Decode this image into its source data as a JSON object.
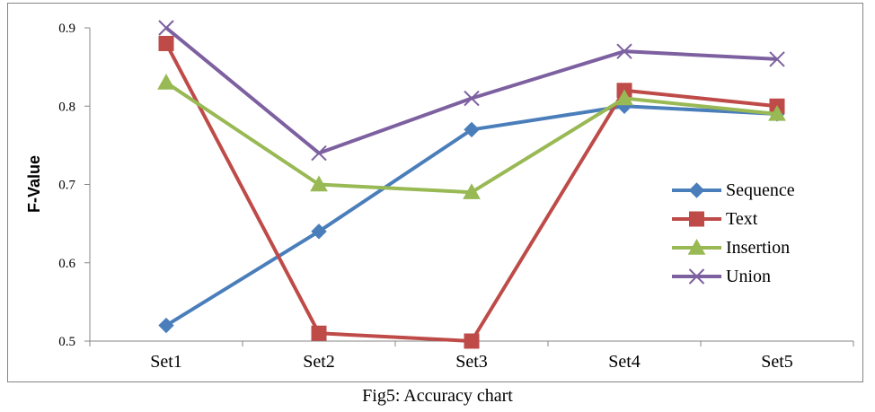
{
  "caption": "Fig5: Accuracy chart",
  "chart_data": {
    "type": "line",
    "title": "",
    "xlabel": "",
    "ylabel": "F-Value",
    "categories": [
      "Set1",
      "Set2",
      "Set3",
      "Set4",
      "Set5"
    ],
    "ylim": [
      0.5,
      0.9
    ],
    "yticks": [
      "0.5",
      "0.6",
      "0.7",
      "0.8",
      "0.9"
    ],
    "grid": false,
    "legend_position": "right",
    "series": [
      {
        "name": "Sequence",
        "color": "#4A7EBB",
        "marker": "diamond",
        "values": [
          0.52,
          0.64,
          0.77,
          0.8,
          0.79
        ]
      },
      {
        "name": "Text",
        "color": "#BE4B48",
        "marker": "square",
        "values": [
          0.88,
          0.51,
          0.5,
          0.82,
          0.8
        ]
      },
      {
        "name": "Insertion",
        "color": "#98B954",
        "marker": "triangle",
        "values": [
          0.83,
          0.7,
          0.69,
          0.81,
          0.79
        ]
      },
      {
        "name": "Union",
        "color": "#7D60A0",
        "marker": "x",
        "values": [
          0.9,
          0.74,
          0.81,
          0.87,
          0.86
        ]
      }
    ]
  }
}
